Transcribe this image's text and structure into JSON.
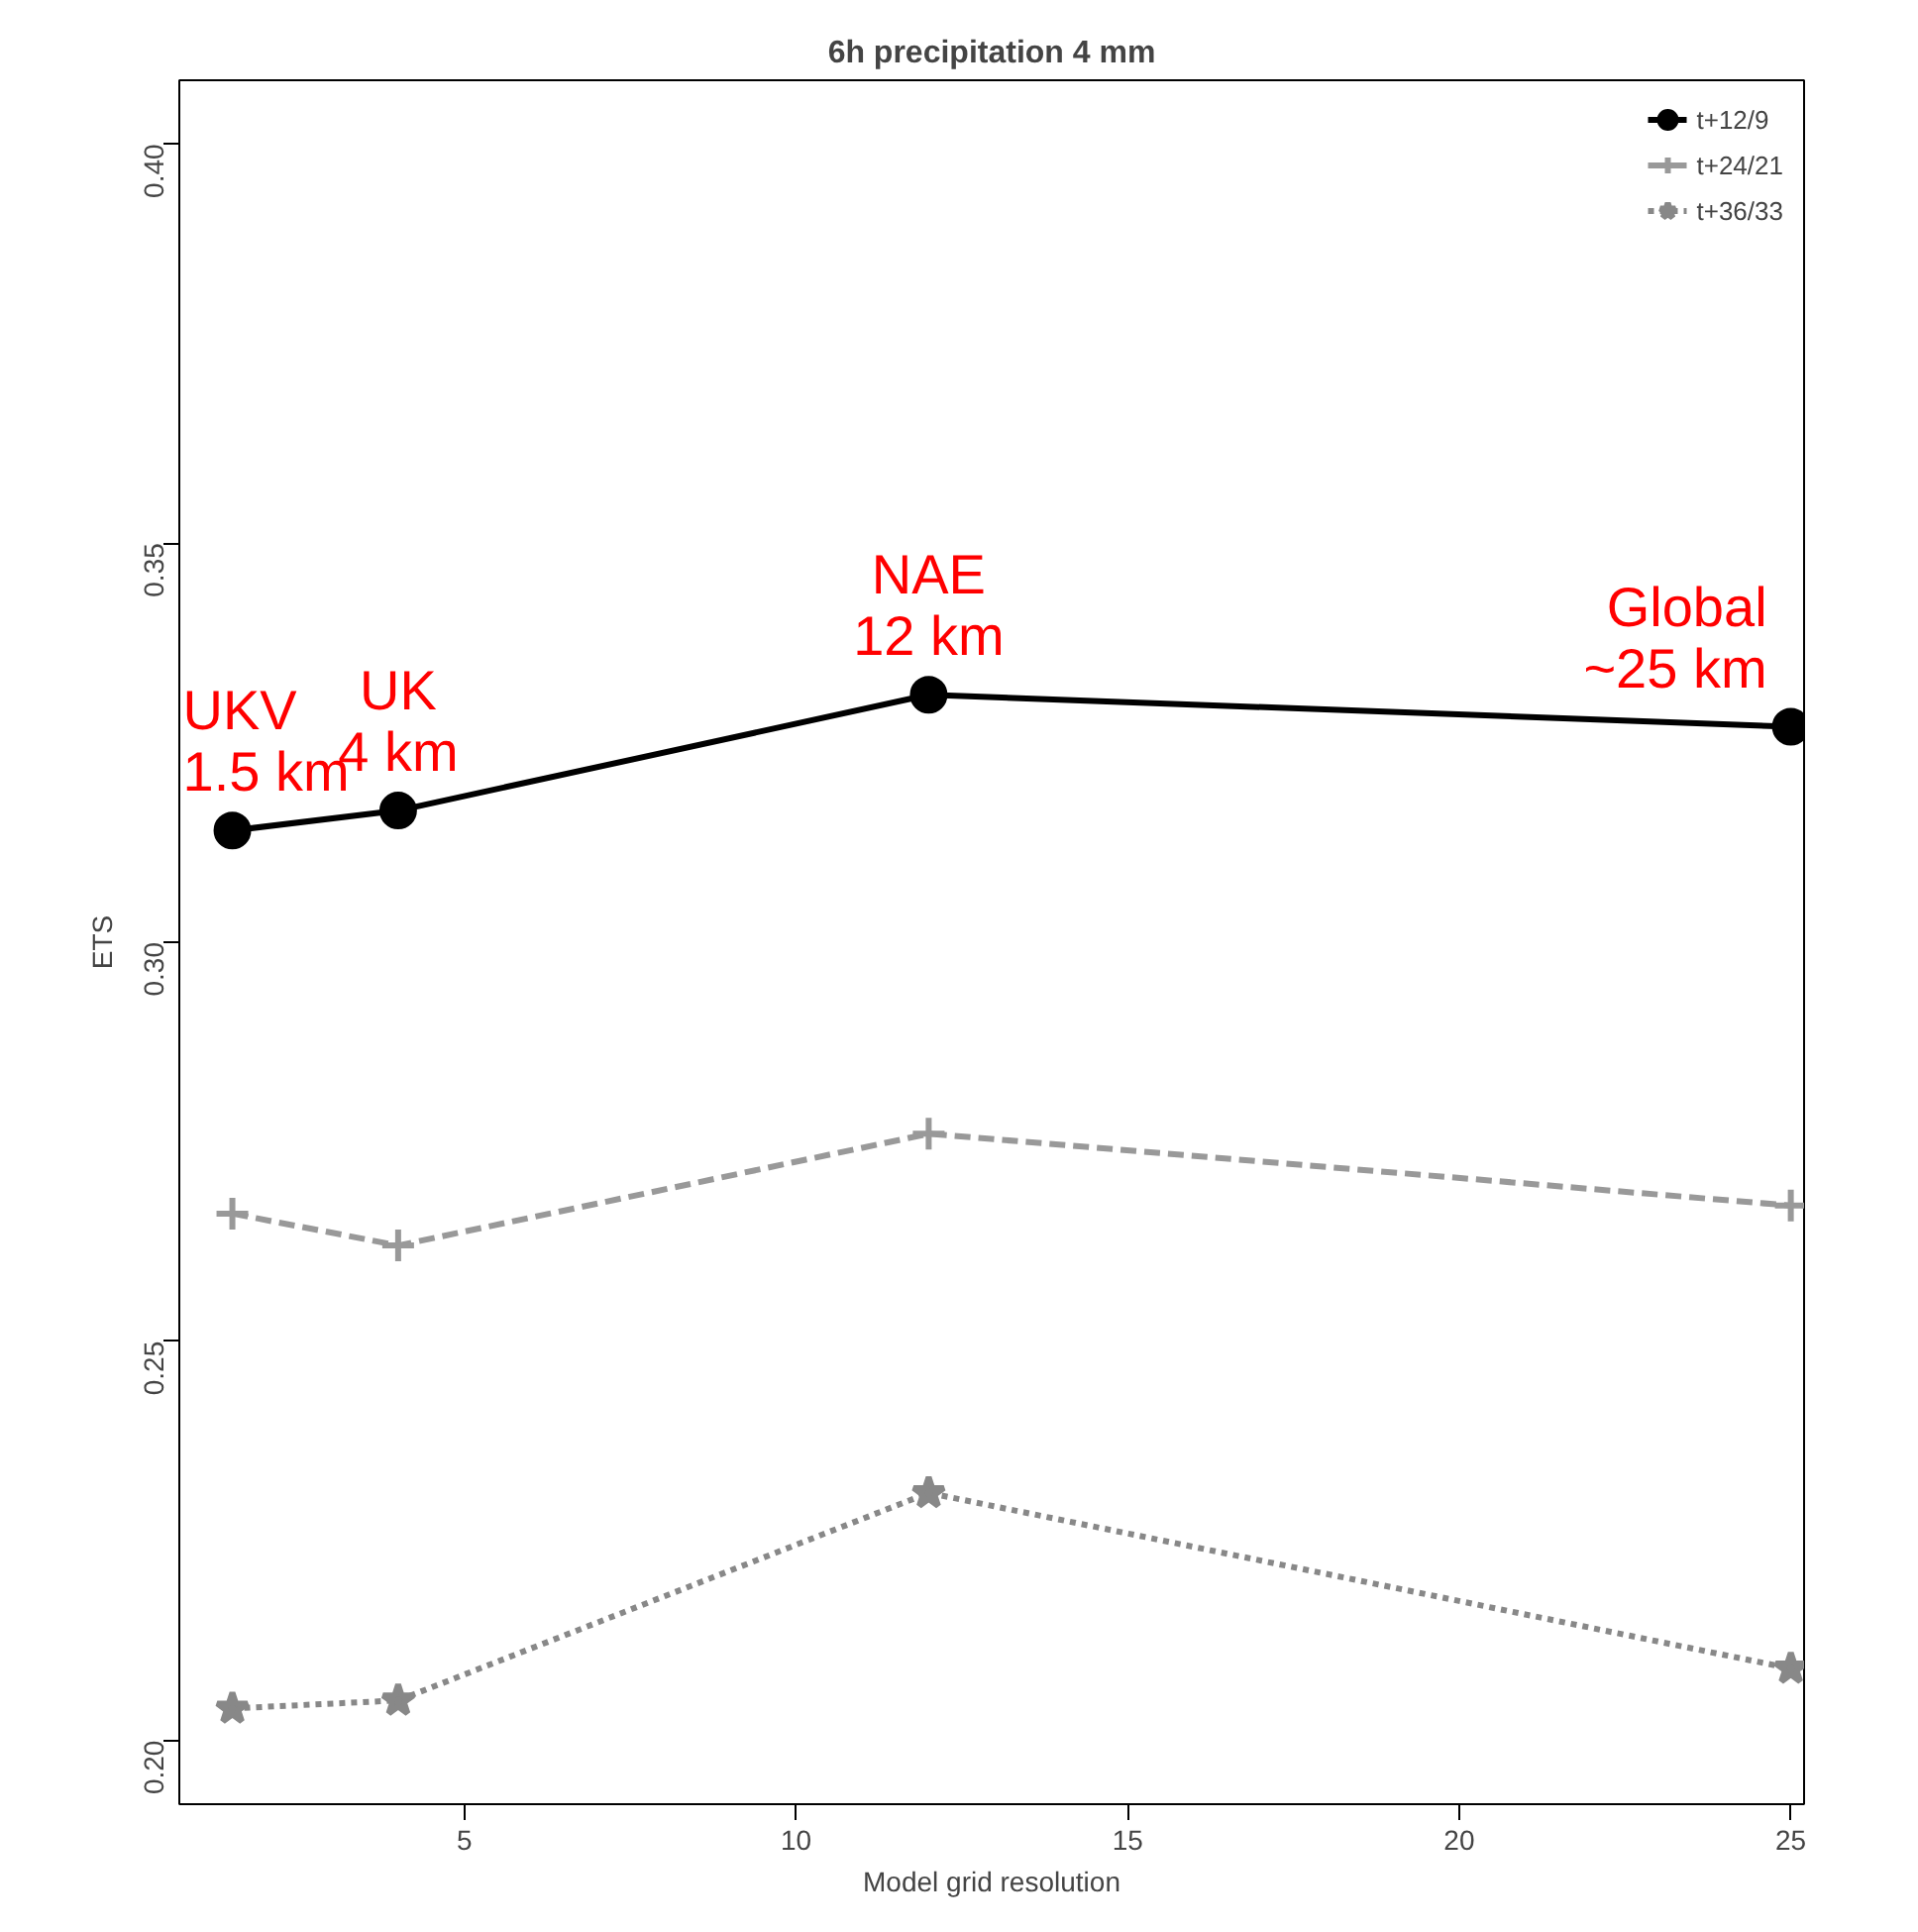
{
  "chart_data": {
    "type": "line",
    "title": "6h precipitation 4 mm",
    "xlabel": "Model grid resolution",
    "ylabel": "ETS",
    "x": [
      1.5,
      4,
      12,
      25
    ],
    "xlim": [
      0.7,
      25.2
    ],
    "xticks": [
      5,
      10,
      15,
      20,
      25
    ],
    "ylim": [
      0.192,
      0.408
    ],
    "yticks": [
      {
        "value": 0.2,
        "label": "0.20"
      },
      0.25,
      {
        "value": 0.3,
        "label": "0.30"
      },
      0.35,
      {
        "value": 0.4,
        "label": "0.40"
      }
    ],
    "grid": false,
    "legend": "top right",
    "series": [
      {
        "name": "t+12/9",
        "color": "#000000",
        "marker": "circle",
        "line_style": "solid",
        "values": [
          0.314,
          0.3165,
          0.331,
          0.327
        ]
      },
      {
        "name": "t+24/21",
        "color": "#999999",
        "marker": "cross",
        "line_style": "dashed",
        "values": [
          0.266,
          0.262,
          0.276,
          0.267
        ]
      },
      {
        "name": "t+36/33",
        "color": "#888888",
        "marker": "star",
        "line_style": "dotted",
        "values": [
          0.204,
          0.205,
          0.231,
          0.209
        ]
      }
    ],
    "annotations": [
      {
        "text": "UKV\n1.5 km",
        "x": 1.5,
        "y": 0.314
      },
      {
        "text": "UK\n4 km",
        "x": 4,
        "y": 0.3165
      },
      {
        "text": "NAE\n12 km",
        "x": 12,
        "y": 0.331
      },
      {
        "text": "Global\n~25 km",
        "x": 25,
        "y": 0.327
      }
    ]
  }
}
